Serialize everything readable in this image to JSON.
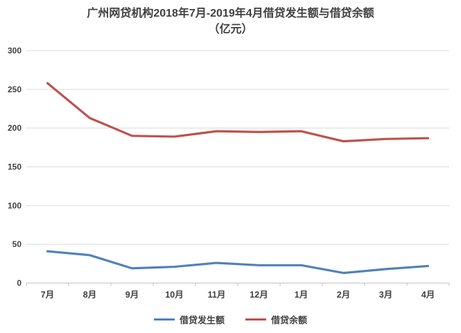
{
  "title": {
    "line1": "广州网贷机构2018年7月-2019年4月借贷发生额与借贷余额",
    "line2": "（亿元）"
  },
  "chart_data": {
    "type": "line",
    "title": "广州网贷机构2018年7月-2019年4月借贷发生额与借贷余额（亿元）",
    "categories": [
      "7月",
      "8月",
      "9月",
      "10月",
      "11月",
      "12月",
      "1月",
      "2月",
      "3月",
      "4月"
    ],
    "series": [
      {
        "name": "借贷发生额",
        "color": "#4F81BD",
        "values": [
          41,
          36,
          19,
          21,
          26,
          23,
          23,
          13,
          18,
          22
        ]
      },
      {
        "name": "借贷余额",
        "color": "#C0504D",
        "values": [
          258,
          213,
          190,
          189,
          196,
          195,
          196,
          183,
          186,
          187
        ]
      }
    ],
    "xlabel": "",
    "ylabel": "",
    "ylim": [
      0,
      300
    ],
    "yticks": [
      0,
      50,
      100,
      150,
      200,
      250,
      300
    ],
    "grid": "horizontal",
    "legend_position": "bottom",
    "gridline_color": "#d9d9d9",
    "axis_line_color": "#bfbfbf",
    "axis_text_color": "#404040"
  }
}
